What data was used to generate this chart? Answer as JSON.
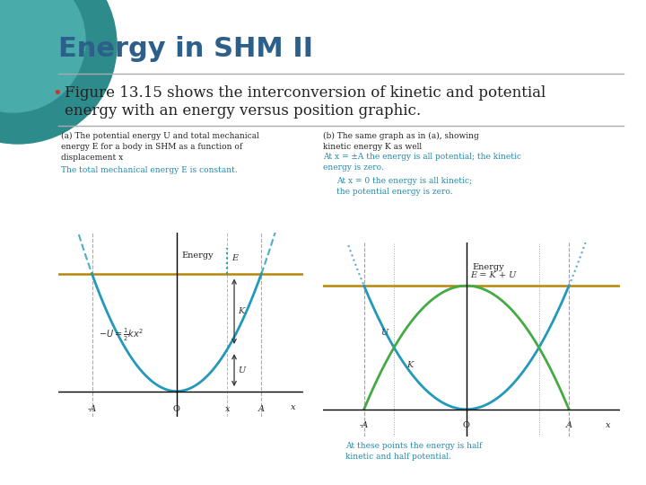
{
  "title": "Energy in SHM II",
  "title_color": "#2c5f8a",
  "title_fontsize": 22,
  "background_color": "#ffffff",
  "bullet_text_line1": "Figure 13.15 shows the interconversion of kinetic and potential",
  "bullet_text_line2": "energy with an energy versus position graphic.",
  "bullet_fontsize": 12,
  "graph_a": {
    "caption_black": "(a) The potential energy U and total mechanical\nenergy E for a body in SHM as a function of\ndisplacement x",
    "caption_teal": "The total mechanical energy E is constant.",
    "curve_color": "#2299bb",
    "E_line_color": "#b8860b",
    "arrow_color": "#333333"
  },
  "graph_b": {
    "caption_black": "(b) The same graph as in (a), showing\nkinetic energy K as well",
    "caption_teal_line1": "At x = ±A the energy is all potential; the kinetic",
    "caption_teal_line2": "energy is zero.",
    "caption_teal2_line1": "At x = 0 the energy is all kinetic;",
    "caption_teal2_line2": "the potential energy is zero.",
    "caption_bottom": "At these points the energy is half\nkinetic and half potential.",
    "U_color": "#2299bb",
    "K_color": "#44aa44",
    "E_line_color": "#b8860b",
    "dashed_color": "#4499cc",
    "label_E": "E = K + U"
  },
  "teal_color1": "#2e8b8b",
  "teal_color2": "#4aabab",
  "sep_color": "#aaaaaa",
  "bullet_color": "#cc3333",
  "text_color": "#222222",
  "caption_teal_color": "#2288aa"
}
